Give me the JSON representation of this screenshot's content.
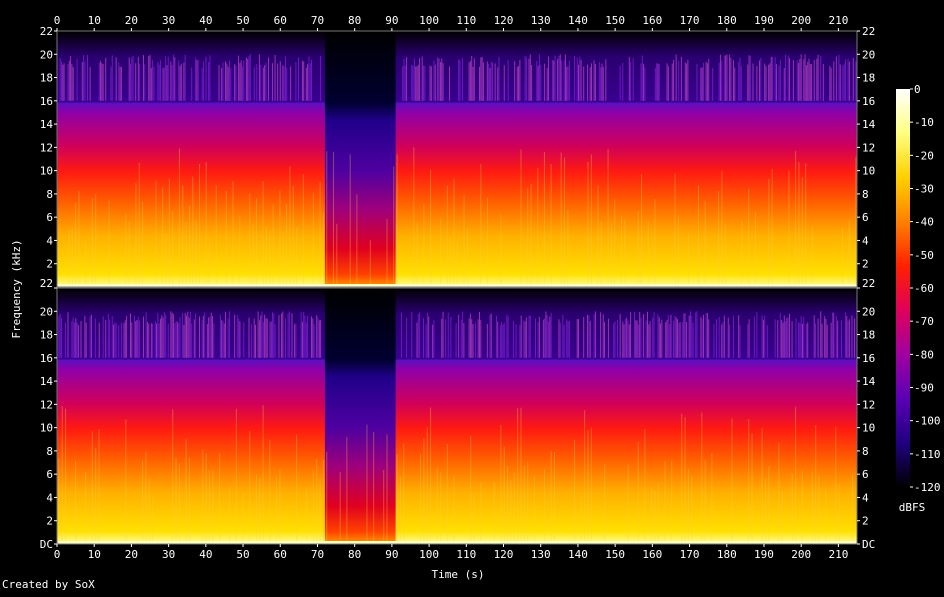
{
  "chart_data": {
    "type": "heatmap",
    "title": "",
    "xlabel": "Time (s)",
    "ylabel": "Frequency (kHz)",
    "xlim": [
      0,
      215
    ],
    "ylim": [
      0,
      22
    ],
    "x_ticks": [
      0,
      10,
      20,
      30,
      40,
      50,
      60,
      70,
      80,
      90,
      100,
      110,
      120,
      130,
      140,
      150,
      160,
      170,
      180,
      190,
      200,
      210
    ],
    "y_ticks_top": [
      "2",
      "4",
      "6",
      "8",
      "10",
      "12",
      "14",
      "16",
      "18",
      "20",
      "22"
    ],
    "y_ticks_bottom": [
      "DC",
      "2",
      "4",
      "6",
      "8",
      "10",
      "12",
      "14",
      "16",
      "18",
      "20",
      "22"
    ],
    "channels": [
      "channel-1",
      "channel-2"
    ],
    "colorbar": {
      "label": "dBFS",
      "range": [
        -120,
        0
      ],
      "ticks": [
        "0",
        "-10",
        "-20",
        "-30",
        "-40",
        "-50",
        "-60",
        "-70",
        "-80",
        "-90",
        "-100",
        "-110",
        "-120"
      ],
      "colors": [
        "#ffffff",
        "#ffff80",
        "#ffd000",
        "#ff8000",
        "#ff2000",
        "#e0005a",
        "#a000a0",
        "#5a00b4",
        "#200080",
        "#000000"
      ]
    },
    "quiet_section_seconds": [
      72,
      91
    ],
    "bandwidth_cutoff_khz": 16,
    "peak_content_khz": 20
  },
  "footer": {
    "credit": "Created by SoX"
  }
}
